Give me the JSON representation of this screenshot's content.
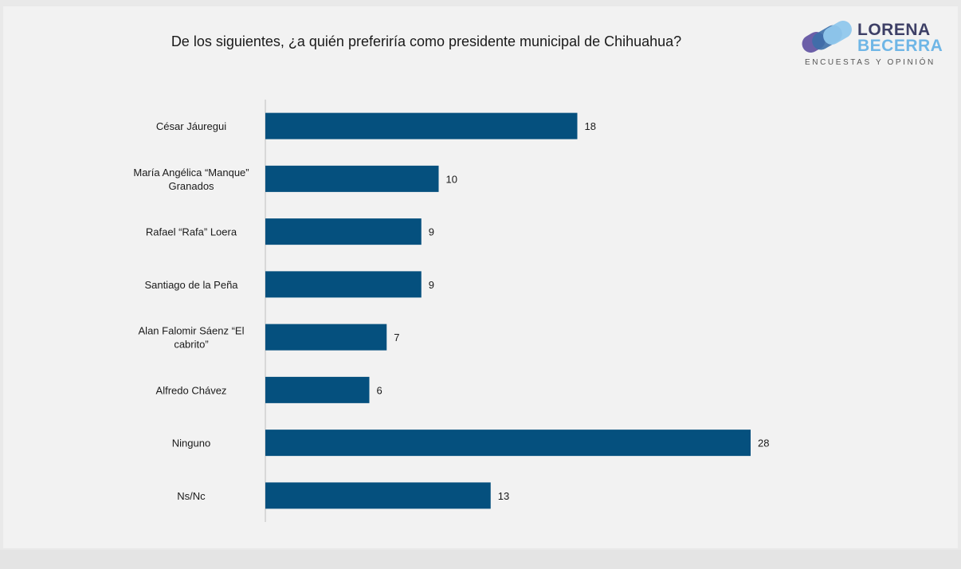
{
  "header": {
    "question": "De los siguientes, ¿a quién preferiría como presidente municipal de Chihuahua?"
  },
  "logo": {
    "line1": "LORENA",
    "line2": "BECERRA",
    "tagline": "ENCUESTAS Y OPINIÓN",
    "colors": {
      "dark": "#3d3f66",
      "light": "#6fb6e6",
      "purple": "#6c5fa8"
    }
  },
  "chart_data": {
    "type": "bar",
    "orientation": "horizontal",
    "categories": [
      [
        "César Jáuregui"
      ],
      [
        "María Angélica “Manque”",
        "Granados"
      ],
      [
        "Rafael “Rafa” Loera"
      ],
      [
        "Santiago de la Peña"
      ],
      [
        "Alan Falomir Sáenz “El",
        "cabrito”"
      ],
      [
        "Alfredo Chávez"
      ],
      [
        "Ninguno"
      ],
      [
        "Ns/Nc"
      ]
    ],
    "values": [
      18,
      10,
      9,
      9,
      7,
      6,
      28,
      13
    ],
    "xlim": [
      0,
      28
    ],
    "grid": false,
    "bar_color": "#05507e"
  }
}
